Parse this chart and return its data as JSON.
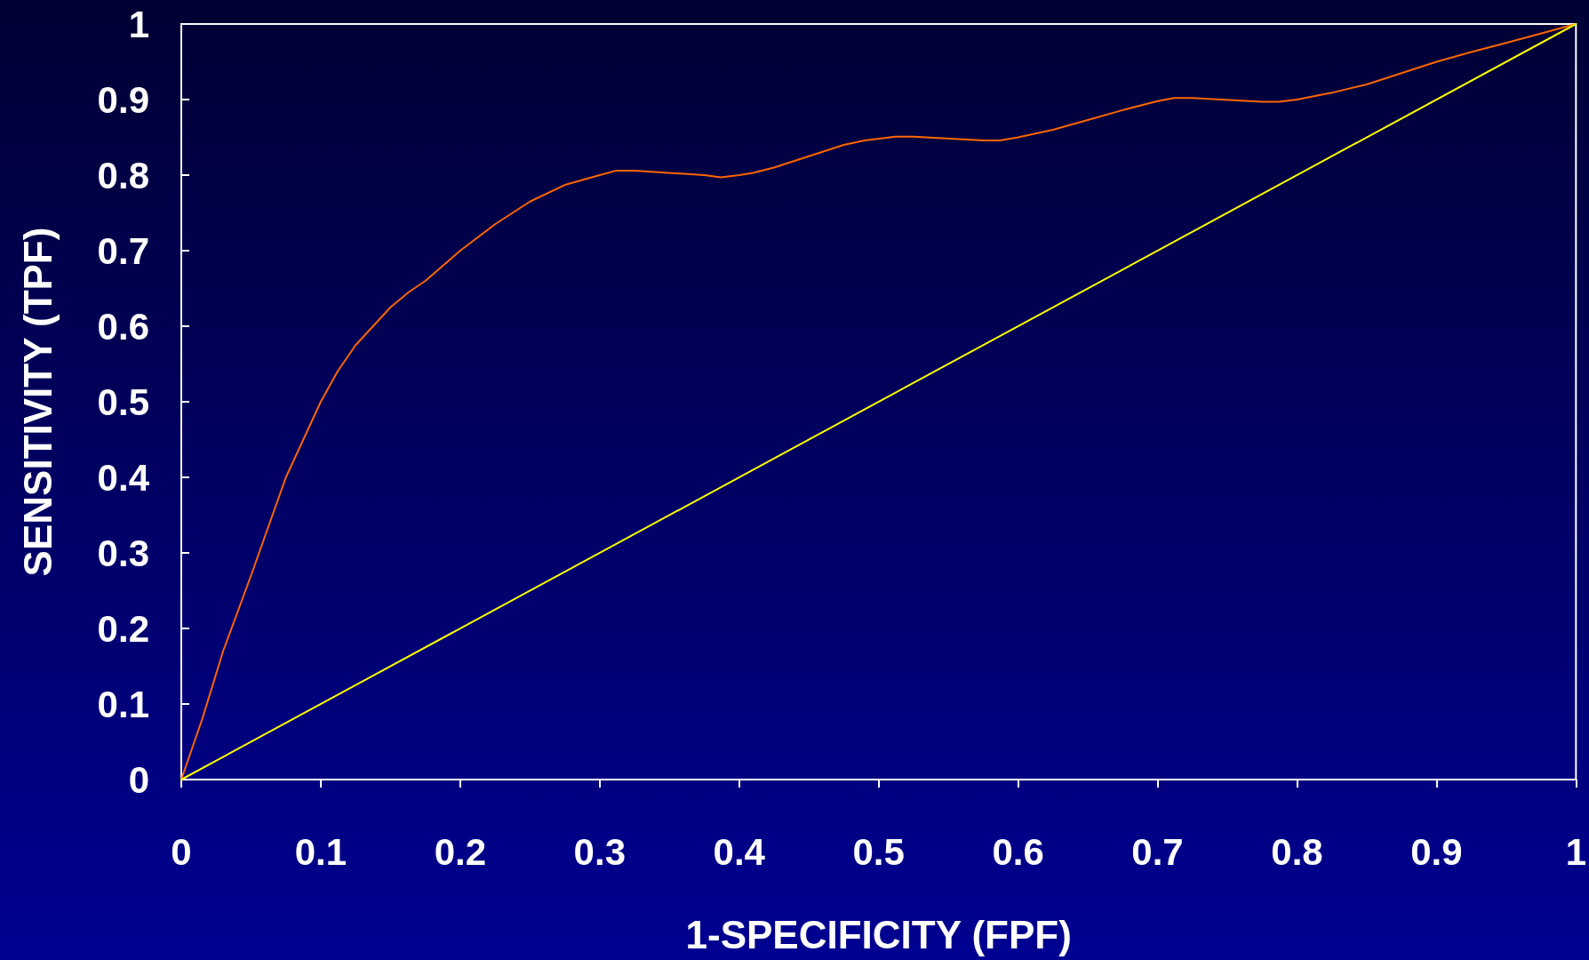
{
  "chart_data": {
    "type": "line",
    "xlabel": "1-SPECIFICITY (FPF)",
    "ylabel": "SENSITIVITY (TPF)",
    "xlim": [
      0,
      1
    ],
    "ylim": [
      0,
      1
    ],
    "xticks": [
      0,
      0.1,
      0.2,
      0.3,
      0.4,
      0.5,
      0.6,
      0.7,
      0.8,
      0.9,
      1
    ],
    "yticks": [
      0,
      0.1,
      0.2,
      0.3,
      0.4,
      0.5,
      0.6,
      0.7,
      0.8,
      0.9,
      1
    ],
    "grid": false,
    "marker": "none",
    "line_style": "solid",
    "series": [
      {
        "color": "#ff6600",
        "x": [
          0,
          0.015,
          0.03,
          0.05,
          0.075,
          0.09,
          0.1,
          0.112,
          0.125,
          0.15,
          0.163,
          0.175,
          0.2,
          0.225,
          0.25,
          0.275,
          0.3,
          0.312,
          0.325,
          0.375,
          0.387,
          0.4,
          0.41,
          0.425,
          0.45,
          0.475,
          0.49,
          0.512,
          0.525,
          0.575,
          0.587,
          0.6,
          0.625,
          0.65,
          0.675,
          0.7,
          0.712,
          0.725,
          0.775,
          0.787,
          0.8,
          0.825,
          0.85,
          0.875,
          0.9,
          0.925,
          0.95,
          1
        ],
        "values": [
          0,
          0.08,
          0.17,
          0.27,
          0.4,
          0.46,
          0.5,
          0.54,
          0.575,
          0.625,
          0.645,
          0.66,
          0.7,
          0.735,
          0.765,
          0.787,
          0.8,
          0.806,
          0.806,
          0.8,
          0.797,
          0.8,
          0.803,
          0.81,
          0.825,
          0.84,
          0.846,
          0.851,
          0.851,
          0.846,
          0.846,
          0.85,
          0.86,
          0.873,
          0.886,
          0.898,
          0.902,
          0.902,
          0.897,
          0.897,
          0.9,
          0.909,
          0.92,
          0.935,
          0.95,
          0.963,
          0.975,
          1
        ]
      },
      {
        "color": "#ffff00",
        "x": [
          0,
          1
        ],
        "values": [
          0,
          1
        ]
      }
    ]
  }
}
